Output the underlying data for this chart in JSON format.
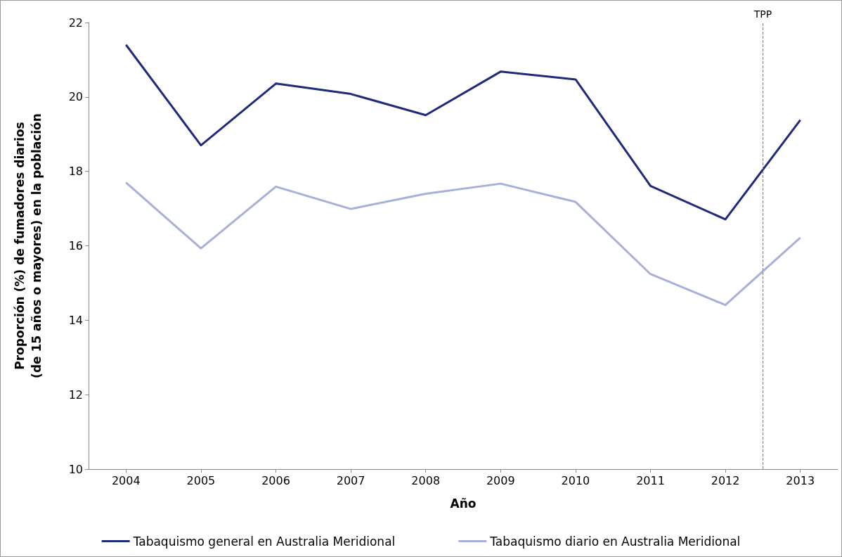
{
  "chart_data": {
    "type": "line",
    "xlabel": "Año",
    "ylabel": "Proporción (%) de fumadores diarios\n(de 15 años o mayores) en la población",
    "x": [
      2004,
      2005,
      2006,
      2007,
      2008,
      2009,
      2010,
      2011,
      2012,
      2013
    ],
    "xlim": [
      2003.5,
      2013.5
    ],
    "xticks": [
      2004,
      2005,
      2006,
      2007,
      2008,
      2009,
      2010,
      2011,
      2012,
      2013
    ],
    "ylim": [
      10,
      22
    ],
    "yticks": [
      10,
      12,
      14,
      16,
      18,
      20,
      22
    ],
    "series": [
      {
        "name": "Tabaquismo general en Australia Meridional",
        "color": "#1f2a7a",
        "values": [
          21.4,
          18.7,
          20.36,
          20.08,
          19.51,
          20.68,
          20.47,
          17.61,
          16.71,
          19.38
        ]
      },
      {
        "name": "Tabaquismo diario en Australia Meridional",
        "color": "#a6b0d9",
        "values": [
          17.7,
          15.93,
          17.59,
          16.99,
          17.4,
          17.67,
          17.18,
          15.24,
          14.41,
          16.22
        ]
      }
    ],
    "ref_lines": [
      {
        "axis": "x",
        "value": 2012.5,
        "label": "TPP",
        "color": "#4a86c8",
        "line_style": "dashed"
      }
    ],
    "grid": false,
    "legend": "bottom",
    "marker": "none",
    "line_style": "solid"
  }
}
